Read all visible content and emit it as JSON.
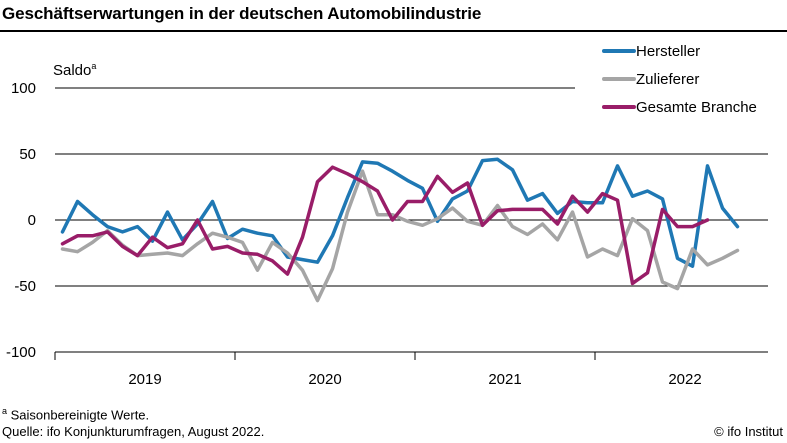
{
  "header": {
    "title": "Geschäftserwartungen in der deutschen Automobilindustrie"
  },
  "footer": {
    "note_marker": "a",
    "note": "Saisonbereinigte Werte.",
    "source": "Quelle: ifo Konjunkturumfragen, August 2022.",
    "credit": "© ifo Institut"
  },
  "chart_data": {
    "type": "line",
    "title": "Geschäftserwartungen in der deutschen Automobilindustrie",
    "ylabel": "Saldo",
    "ylabel_superscript": "a",
    "xlabel": "",
    "ylim": [
      -100,
      100
    ],
    "yticks": [
      100,
      50,
      0,
      -50,
      -100
    ],
    "x_tick_labels": [
      "2019",
      "2020",
      "2021",
      "2022"
    ],
    "x_start": "2019-01",
    "legend_position": "top-right",
    "grid": "horizontal",
    "series": [
      {
        "name": "Hersteller",
        "color": "#1f78b4",
        "values": [
          -9,
          14,
          4,
          -5,
          -9,
          -5,
          -16,
          6,
          -15,
          -3,
          14,
          -14,
          -7,
          -10,
          -12,
          -28,
          -30,
          -32,
          -12,
          17,
          44,
          43,
          37,
          30,
          24,
          -1,
          16,
          22,
          45,
          46,
          38,
          15,
          20,
          5,
          14,
          13,
          13,
          41,
          18,
          22,
          16,
          -29,
          -35,
          41,
          9,
          -5
        ]
      },
      {
        "name": "Zulieferer",
        "color": "#a5a5a5",
        "values": [
          -22,
          -24,
          -17,
          -8,
          -19,
          -27,
          -26,
          -25,
          -27,
          -18,
          -10,
          -13,
          -17,
          -38,
          -17,
          -25,
          -38,
          -61,
          -37,
          6,
          37,
          4,
          4,
          -1,
          -4,
          1,
          9,
          -1,
          -4,
          11,
          -5,
          -11,
          -3,
          -15,
          6,
          -28,
          -22,
          -27,
          1,
          -8,
          -47,
          -52,
          -22,
          -34,
          -29,
          -23
        ]
      },
      {
        "name": "Gesamte Branche",
        "color": "#991d68",
        "values": [
          -18,
          -12,
          -12,
          -9,
          -20,
          -27,
          -13,
          -21,
          -18,
          0,
          -22,
          -20,
          -25,
          -26,
          -31,
          -41,
          -13,
          29,
          40,
          35,
          29,
          22,
          0,
          14,
          14,
          33,
          21,
          28,
          -4,
          7,
          8,
          8,
          8,
          -3,
          18,
          6,
          20,
          15,
          -48,
          -40,
          8,
          -5,
          -5,
          0
        ]
      }
    ]
  }
}
